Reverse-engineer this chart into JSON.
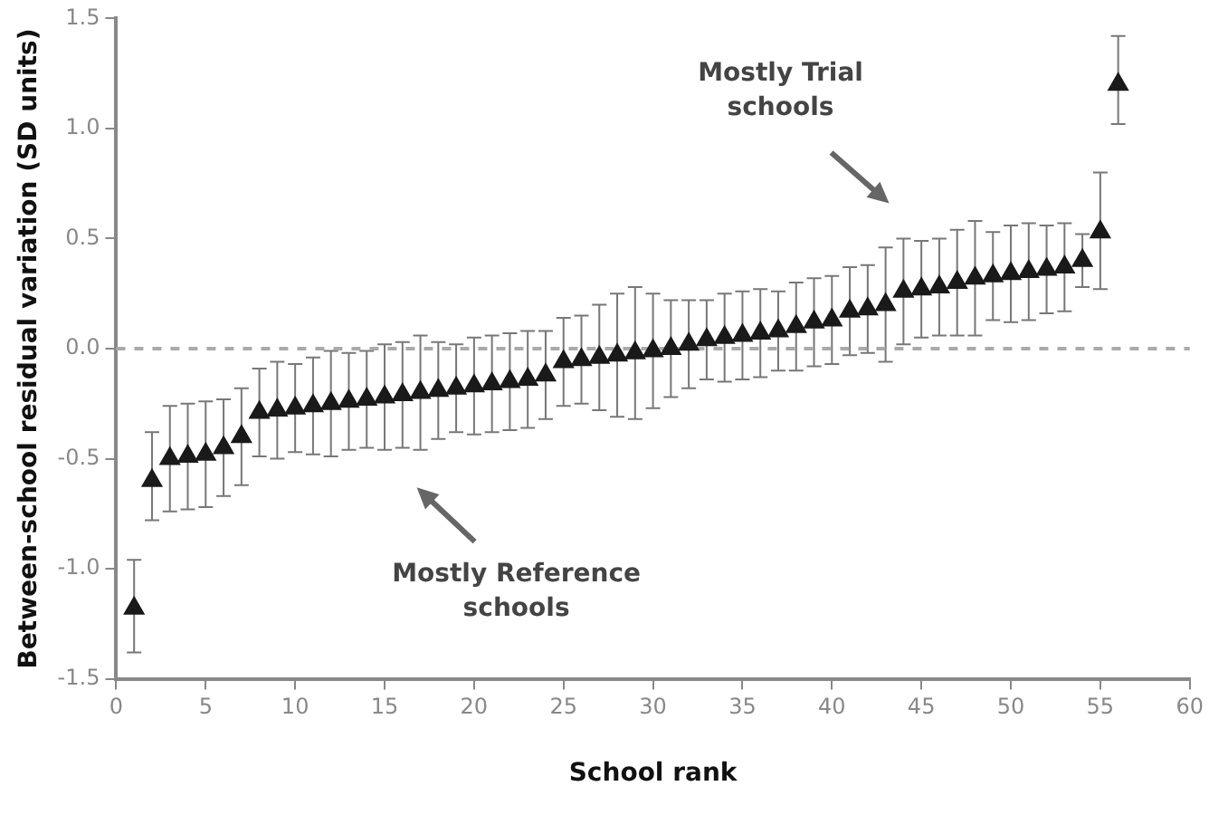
{
  "chart_data": {
    "type": "scatter",
    "xlabel": "School rank",
    "ylabel": "Between-school residual variation (SD units)",
    "x": [
      1,
      2,
      3,
      4,
      5,
      6,
      7,
      8,
      9,
      10,
      11,
      12,
      13,
      14,
      15,
      16,
      17,
      18,
      19,
      20,
      21,
      22,
      23,
      24,
      25,
      26,
      27,
      28,
      29,
      30,
      31,
      32,
      33,
      34,
      35,
      36,
      37,
      38,
      39,
      40,
      41,
      42,
      43,
      44,
      45,
      46,
      47,
      48,
      49,
      50,
      51,
      52,
      53,
      54,
      55,
      56
    ],
    "series": [
      {
        "color": "#1a1a1a",
        "values": [
          -1.18,
          -0.6,
          -0.5,
          -0.49,
          -0.48,
          -0.45,
          -0.4,
          -0.29,
          -0.28,
          -0.27,
          -0.26,
          -0.25,
          -0.24,
          -0.23,
          -0.22,
          -0.21,
          -0.2,
          -0.19,
          -0.18,
          -0.17,
          -0.16,
          -0.15,
          -0.14,
          -0.12,
          -0.06,
          -0.05,
          -0.04,
          -0.03,
          -0.02,
          -0.01,
          0.0,
          0.02,
          0.04,
          0.05,
          0.06,
          0.07,
          0.08,
          0.1,
          0.12,
          0.13,
          0.17,
          0.18,
          0.2,
          0.26,
          0.27,
          0.28,
          0.3,
          0.32,
          0.33,
          0.34,
          0.35,
          0.36,
          0.37,
          0.4,
          0.53,
          1.2
        ],
        "errors": [
          [
            -1.38,
            -0.96
          ],
          [
            -0.78,
            -0.38
          ],
          0.24,
          0.24,
          0.24,
          0.22,
          0.22,
          0.2,
          0.22,
          0.2,
          0.22,
          0.24,
          0.22,
          0.22,
          0.24,
          0.24,
          0.26,
          0.22,
          0.2,
          0.22,
          0.22,
          0.22,
          0.22,
          0.2,
          0.2,
          0.2,
          0.24,
          0.28,
          0.3,
          0.26,
          0.22,
          0.2,
          0.18,
          0.2,
          0.2,
          0.2,
          0.18,
          0.2,
          0.2,
          0.2,
          0.2,
          0.2,
          0.26,
          0.24,
          0.22,
          0.22,
          0.24,
          0.26,
          0.2,
          0.22,
          0.22,
          0.2,
          0.2,
          0.12,
          [
            0.27,
            0.8
          ],
          [
            1.02,
            1.42
          ]
        ]
      }
    ],
    "xlim": [
      0,
      60
    ],
    "xticks": [
      0,
      5,
      10,
      15,
      20,
      25,
      30,
      35,
      40,
      45,
      50,
      55,
      60
    ],
    "ylim": [
      -1.5,
      1.5
    ],
    "yticks": [
      {
        "value": -1.5,
        "label": "-1.5"
      },
      {
        "value": -1,
        "label": "-1.0"
      },
      {
        "value": -0.5,
        "label": "-0.5"
      },
      {
        "value": 0,
        "label": "0.0"
      },
      {
        "value": 0.5,
        "label": "0.5"
      },
      {
        "value": 1,
        "label": "1.0"
      },
      {
        "value": 1.5,
        "label": "1.5"
      }
    ],
    "ref_lines": [
      {
        "axis": "y",
        "value": 0,
        "color": "#aaaaaa",
        "line_style": "dashed"
      }
    ],
    "annotations": [
      "Mostly Trial schools",
      "Mostly Reference schools"
    ],
    "grid": false,
    "legend": false,
    "marker": "triangle"
  }
}
